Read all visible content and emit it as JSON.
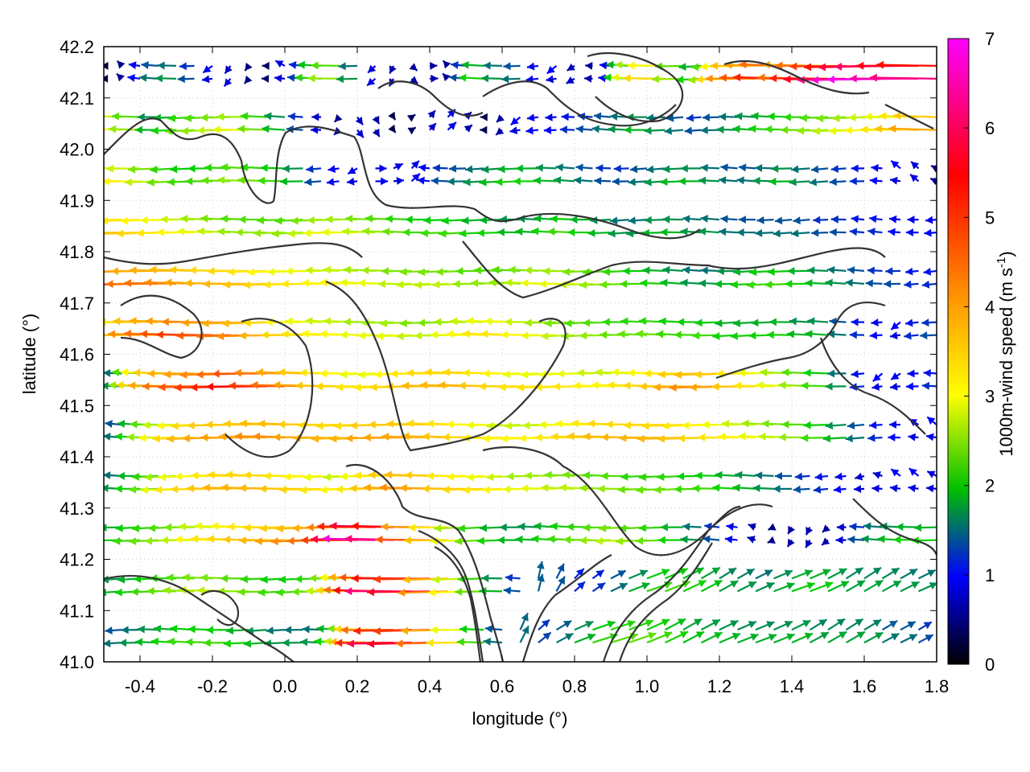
{
  "chart_data": {
    "type": "quiver",
    "xlabel": "longitude (°)",
    "ylabel": "latitude (°)",
    "xlim": [
      -0.5,
      1.8
    ],
    "ylim": [
      41.0,
      42.2
    ],
    "xticks": [
      -0.4,
      -0.2,
      0.0,
      0.2,
      0.4,
      0.6,
      0.8,
      1.0,
      1.2,
      1.4,
      1.6,
      1.8
    ],
    "xtick_labels": [
      "-0.4",
      "-0.2",
      "0.0",
      "0.2",
      "0.4",
      "0.6",
      "0.8",
      "1.0",
      "1.2",
      "1.4",
      "1.6",
      "1.8"
    ],
    "yticks": [
      41.0,
      41.1,
      41.2,
      41.3,
      41.4,
      41.5,
      41.6,
      41.7,
      41.8,
      41.9,
      42.0,
      42.1,
      42.2
    ],
    "ytick_labels": [
      "41.0",
      "41.1",
      "41.2",
      "41.3",
      "41.4",
      "41.5",
      "41.6",
      "41.7",
      "41.8",
      "41.9",
      "42.0",
      "42.1",
      "42.2"
    ],
    "grid": true,
    "colorbar": {
      "label": "1000m-wind speed (m s-1)",
      "label_main": "1000m-wind speed (m s",
      "label_sup": "-1",
      "label_end": ")",
      "range": [
        0,
        7
      ],
      "ticks": [
        0,
        1,
        2,
        3,
        4,
        5,
        6,
        7
      ],
      "tick_labels": [
        "0",
        "1",
        "2",
        "3",
        "4",
        "5",
        "6",
        "7"
      ],
      "palette": [
        "#000000",
        "#0000ff",
        "#00d000",
        "#ffff00",
        "#ffa000",
        "#ff0000",
        "#ff00ff"
      ]
    },
    "wind_field": {
      "description": "approximate wind vectors on a regular grid; u/v in m/s, mostly easterly flow toward the west",
      "lon_step": 0.05,
      "lat_step": 0.05,
      "rows": [
        {
          "lat": 42.15,
          "u": [
            -0.3,
            -0.5,
            -1.2,
            -1.8,
            -2.0,
            -1.6,
            -1.0,
            -0.6,
            -0.4,
            -0.5,
            -1.0,
            -1.5,
            -2.5,
            -3.0,
            -2.0,
            -0.8,
            -0.4,
            0.6,
            0.8,
            -0.5,
            -1.6,
            -2.4,
            -2.0,
            -1.8,
            -1.2,
            -1.0,
            -0.8,
            -0.8,
            -1.2,
            -2.4,
            -3.4,
            -4.0,
            -3.0,
            -2.4,
            -3.0,
            -4.0,
            -4.8,
            -5.2,
            -5.6,
            -5.0,
            -5.6,
            -6.0,
            -6.4,
            -6.8,
            -7.0,
            -6.6,
            -6.4
          ]
        },
        {
          "lat": 42.05,
          "u": [
            -3.8,
            -3.6,
            -3.0,
            -2.2,
            -2.4,
            -2.8,
            -3.0,
            -3.2,
            -3.4,
            -2.8,
            -2.2,
            -1.6,
            -1.0,
            -0.5,
            0.6,
            0.4,
            0.2,
            0.4,
            0.6,
            0.8,
            0.6,
            -0.4,
            -0.6,
            -1.0,
            -1.2,
            -1.2,
            -1.4,
            -1.6,
            -1.8,
            -2.0,
            -2.2,
            -2.0,
            -1.8,
            -1.6,
            -1.8,
            -2.0,
            -2.2,
            -2.4,
            -2.6,
            -2.8,
            -3.0,
            -3.2,
            -3.4,
            -3.6,
            -3.8,
            -4.2,
            -4.6
          ]
        },
        {
          "lat": 41.95,
          "u": [
            -4.2,
            -4.0,
            -3.6,
            -3.2,
            -2.8,
            -2.6,
            -2.6,
            -2.8,
            -3.0,
            -2.8,
            -2.6,
            -2.2,
            -1.6,
            -1.2,
            -1.0,
            1.2,
            1.0,
            0.8,
            -1.2,
            -1.6,
            -1.8,
            -2.0,
            -2.2,
            -2.4,
            -2.4,
            -2.2,
            -2.0,
            -1.8,
            -1.6,
            -1.6,
            -1.8,
            -2.0,
            -2.2,
            -2.2,
            -2.0,
            -1.8,
            -1.8,
            -2.0,
            -2.2,
            -2.0,
            -1.8,
            -1.6,
            -1.4,
            -1.2,
            -1.0,
            -0.8,
            -0.6
          ]
        },
        {
          "lat": 41.85,
          "u": [
            -4.6,
            -4.4,
            -4.2,
            -4.0,
            -3.8,
            -3.6,
            -3.4,
            -3.2,
            -3.0,
            -3.0,
            -3.0,
            -3.0,
            -3.2,
            -3.4,
            -3.4,
            -3.2,
            -3.0,
            -2.8,
            -2.6,
            -2.6,
            -2.6,
            -2.4,
            -2.4,
            -2.2,
            -2.2,
            -2.4,
            -2.6,
            -2.4,
            -2.2,
            -2.0,
            -2.0,
            -2.2,
            -2.2,
            -2.0,
            -2.0,
            -1.8,
            -1.8,
            -1.8,
            -1.8,
            -1.8,
            -1.6,
            -1.6,
            -1.4,
            -1.4,
            -1.2,
            -1.2,
            -1.2
          ]
        },
        {
          "lat": 41.75,
          "u": [
            -5.0,
            -5.2,
            -5.2,
            -5.0,
            -5.0,
            -4.8,
            -4.6,
            -4.4,
            -4.4,
            -4.2,
            -4.0,
            -3.8,
            -3.8,
            -3.6,
            -3.6,
            -3.4,
            -3.4,
            -3.2,
            -3.2,
            -3.2,
            -3.2,
            -3.0,
            -3.0,
            -3.0,
            -3.2,
            -3.4,
            -3.4,
            -3.2,
            -3.0,
            -2.8,
            -2.6,
            -2.4,
            -2.2,
            -2.0,
            -2.0,
            -2.2,
            -2.4,
            -2.6,
            -2.6,
            -2.4,
            -2.2,
            -2.0,
            -1.8,
            -1.6,
            -1.6,
            -1.4,
            -1.4
          ]
        },
        {
          "lat": 41.65,
          "u": [
            -3.6,
            -4.0,
            -4.4,
            -4.8,
            -5.0,
            -5.2,
            -5.4,
            -5.2,
            -5.0,
            -4.8,
            -4.4,
            -4.0,
            -3.8,
            -3.6,
            -3.6,
            -3.4,
            -3.4,
            -3.4,
            -3.2,
            -3.2,
            -3.4,
            -3.6,
            -3.8,
            -3.8,
            -3.6,
            -3.4,
            -3.2,
            -3.0,
            -3.0,
            -2.8,
            -2.8,
            -2.8,
            -2.6,
            -2.6,
            -2.6,
            -2.4,
            -2.4,
            -2.4,
            -2.4,
            -2.2,
            -2.2,
            -1.8,
            -1.4,
            -1.2,
            -1.0,
            -1.4,
            -1.6
          ]
        },
        {
          "lat": 41.55,
          "u": [
            -1.6,
            -2.0,
            -3.0,
            -4.0,
            -4.6,
            -5.0,
            -5.2,
            -5.4,
            -5.6,
            -5.8,
            -5.4,
            -5.0,
            -4.6,
            -4.2,
            -4.0,
            -3.8,
            -3.8,
            -4.0,
            -4.2,
            -4.4,
            -4.4,
            -4.4,
            -4.2,
            -4.0,
            -3.8,
            -3.8,
            -3.8,
            -3.8,
            -3.6,
            -3.6,
            -3.8,
            -4.0,
            -4.2,
            -4.6,
            -4.8,
            -4.6,
            -4.2,
            -3.8,
            -3.4,
            -3.0,
            -2.6,
            -2.0,
            -1.4,
            -1.0,
            -1.0,
            -1.2,
            -1.4
          ]
        },
        {
          "lat": 41.45,
          "u": [
            -1.4,
            -1.8,
            -2.4,
            -3.0,
            -3.6,
            -4.0,
            -4.4,
            -4.6,
            -4.6,
            -4.6,
            -4.8,
            -4.8,
            -4.6,
            -4.4,
            -4.4,
            -4.4,
            -4.6,
            -4.6,
            -4.6,
            -4.4,
            -4.2,
            -4.0,
            -3.8,
            -3.6,
            -3.6,
            -3.6,
            -3.8,
            -4.0,
            -4.2,
            -4.4,
            -4.4,
            -4.4,
            -4.4,
            -4.2,
            -4.0,
            -3.8,
            -3.6,
            -3.4,
            -3.2,
            -3.0,
            -2.6,
            -2.2,
            -1.8,
            -1.4,
            -1.2,
            -1.0,
            -1.0
          ]
        },
        {
          "lat": 41.35,
          "u": [
            -1.6,
            -2.0,
            -2.4,
            -2.8,
            -3.4,
            -3.8,
            -4.0,
            -4.2,
            -4.4,
            -4.4,
            -4.4,
            -4.2,
            -4.0,
            -3.8,
            -3.6,
            -3.8,
            -4.2,
            -4.6,
            -4.8,
            -4.6,
            -4.2,
            -4.0,
            -3.8,
            -3.6,
            -3.4,
            -3.4,
            -3.2,
            -3.2,
            -3.0,
            -3.0,
            -2.8,
            -2.8,
            -2.8,
            -2.6,
            -2.6,
            -2.4,
            -2.2,
            -2.0,
            -1.8,
            -1.6,
            -1.4,
            -1.2,
            -1.0,
            -1.0,
            -1.0,
            -1.0,
            -1.0
          ]
        },
        {
          "lat": 41.25,
          "u": [
            -2.2,
            -2.4,
            -2.6,
            -2.8,
            -3.0,
            -3.2,
            -3.6,
            -3.8,
            -4.0,
            -4.2,
            -4.4,
            -4.6,
            -4.8,
            -5.0,
            -5.4,
            -6.2,
            -6.8,
            -6.4,
            -5.2,
            -4.2,
            -3.4,
            -2.8,
            -2.4,
            -2.2,
            -2.2,
            -2.4,
            -2.6,
            -2.8,
            -3.0,
            -3.2,
            -3.0,
            -2.8,
            -2.4,
            -2.0,
            -1.6,
            -1.2,
            -0.8,
            -0.6,
            -0.4,
            -0.4,
            -0.6,
            -1.0,
            -1.6,
            -2.0,
            -2.2,
            -2.4,
            -2.4
          ]
        },
        {
          "lat": 41.15,
          "u": [
            -2.0,
            -2.2,
            -2.4,
            -2.6,
            -2.8,
            -3.0,
            -3.2,
            -3.2,
            -3.0,
            -2.8,
            -2.6,
            -2.6,
            -2.8,
            -3.2,
            -4.0,
            -5.0,
            -5.8,
            -6.4,
            -6.0,
            -4.8,
            -3.6,
            -2.8,
            -2.2,
            -1.6,
            0.4,
            0.8,
            1.0,
            1.2,
            1.6,
            2.0,
            2.4,
            2.4,
            2.2,
            2.0,
            1.8,
            1.8,
            1.8,
            2.0,
            2.2,
            2.2,
            2.0,
            1.8,
            1.8,
            1.8,
            1.8,
            1.8,
            1.8
          ]
        },
        {
          "lat": 41.05,
          "u": [
            -1.6,
            -1.8,
            -2.0,
            -2.2,
            -2.4,
            -2.6,
            -2.6,
            -2.6,
            -2.4,
            -2.2,
            -2.0,
            -2.0,
            -2.0,
            -2.4,
            -3.2,
            -4.4,
            -5.6,
            -6.2,
            -6.0,
            -5.0,
            -3.8,
            -2.6,
            -1.8,
            0.8,
            1.2,
            1.6,
            2.0,
            2.4,
            2.6,
            2.6,
            2.4,
            2.2,
            2.0,
            2.0,
            2.0,
            2.0,
            2.0,
            2.0,
            2.0,
            1.8,
            1.8,
            1.8,
            1.8,
            1.6,
            1.6,
            1.4,
            1.2
          ]
        }
      ]
    }
  }
}
